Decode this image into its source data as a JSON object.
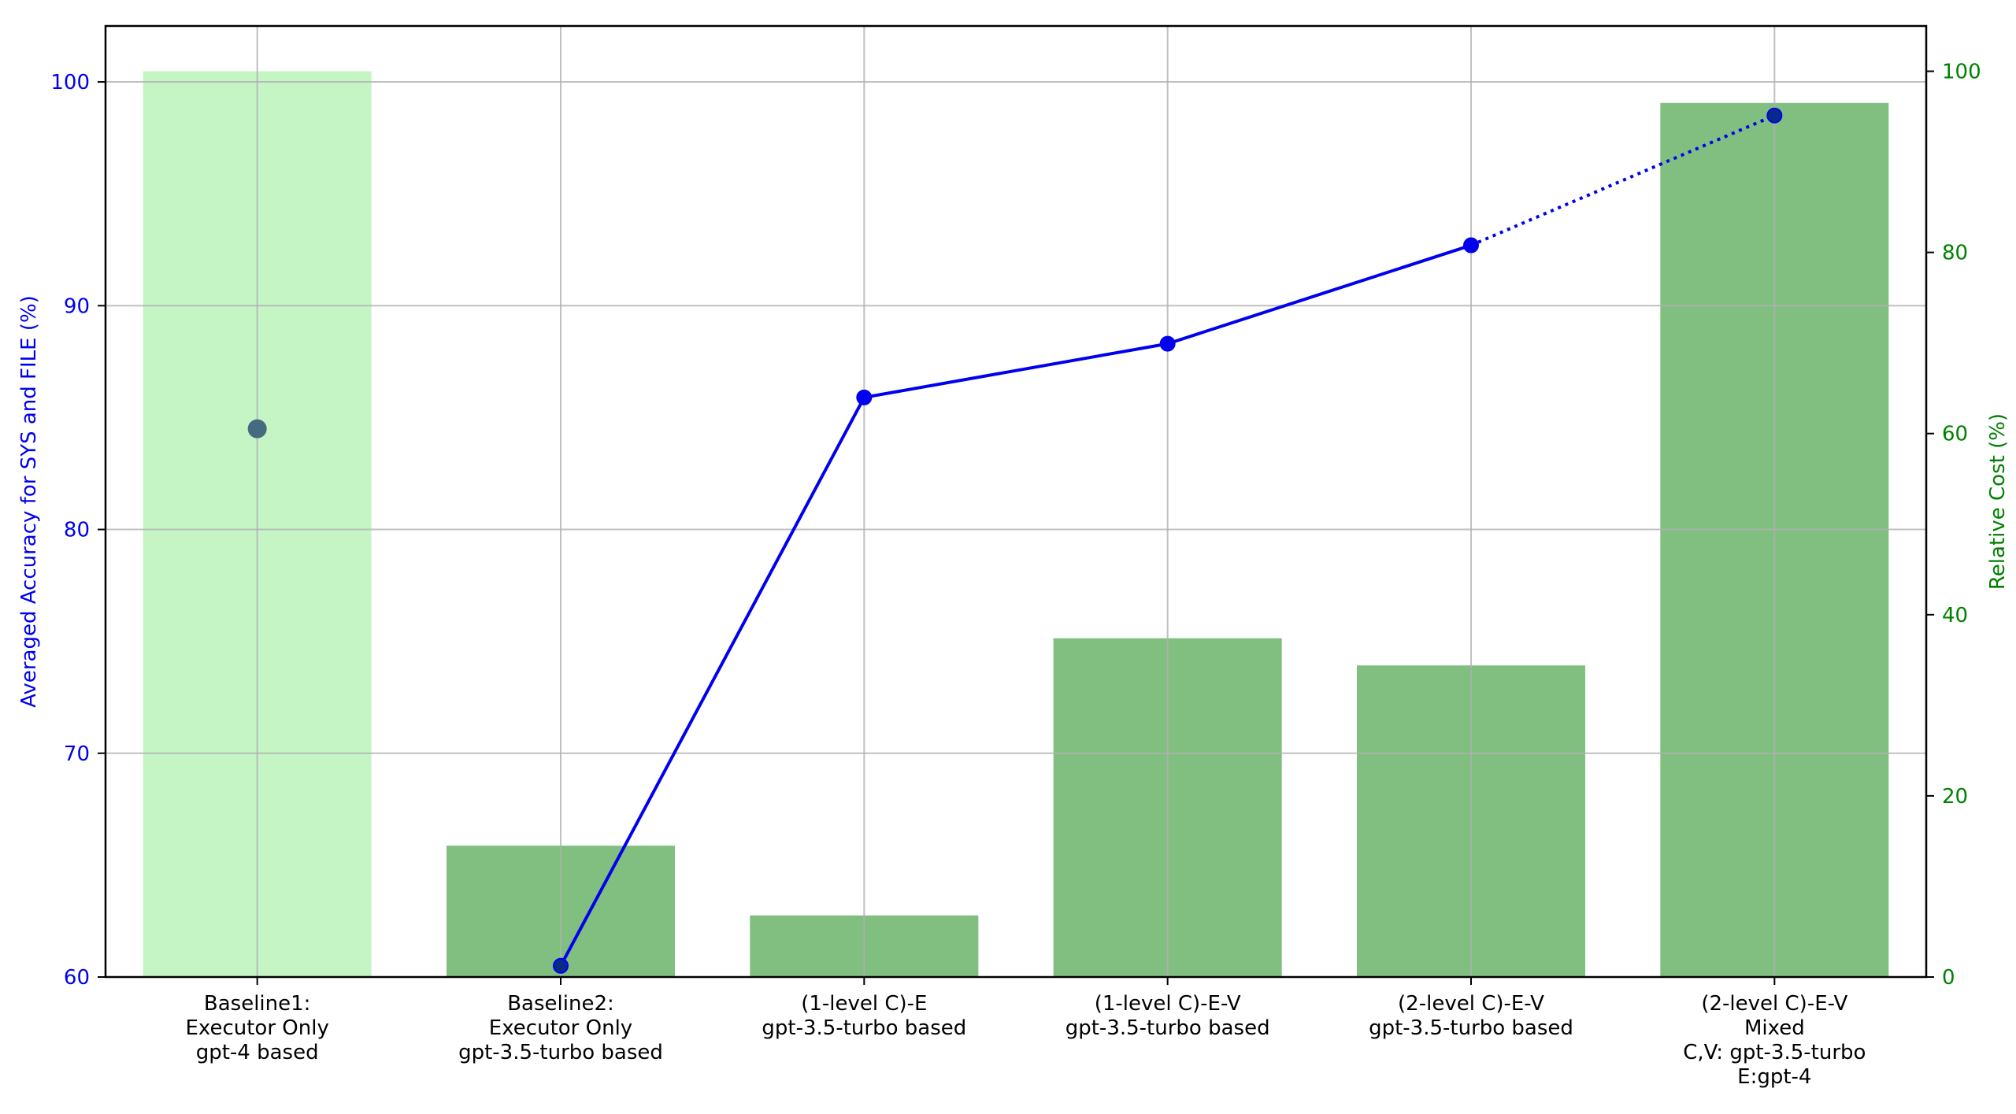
{
  "chart_data": {
    "type": "bar",
    "title": "",
    "categories": [
      [
        "Baseline1:",
        "Executor Only",
        "gpt-4 based"
      ],
      [
        "Baseline2:",
        "Executor Only",
        "gpt-3.5-turbo based"
      ],
      [
        "(1-level C)-E",
        "gpt-3.5-turbo based"
      ],
      [
        "(1-level C)-E-V",
        "gpt-3.5-turbo based"
      ],
      [
        "(2-level C)-E-V",
        "gpt-3.5-turbo based"
      ],
      [
        "(2-level C)-E-V",
        "Mixed",
        "C,V: gpt-3.5-turbo",
        "E:gpt-4"
      ]
    ],
    "bar_series": {
      "values": [
        100,
        14.5,
        6.8,
        37.4,
        34.4,
        96.5
      ],
      "bar_colors": [
        "#c5f5c5",
        "#80bf80",
        "#80bf80",
        "#80bf80",
        "#80bf80",
        "#80bf80"
      ],
      "axis": "right"
    },
    "line_series": {
      "values": [
        84.5,
        60.5,
        85.9,
        88.3,
        92.7,
        98.5
      ],
      "color": "#0000ee",
      "axis": "left",
      "solid_segments": [
        [
          1,
          2
        ],
        [
          2,
          3
        ],
        [
          3,
          4
        ]
      ],
      "dotted_segments": [
        [
          4,
          5
        ]
      ],
      "baseline_marker_color": "#446b7f"
    },
    "ylabel": "Averaged Accuracy for SYS and FILE (%)",
    "ylabel_color": "#0000ee",
    "y2label": "Relative Cost (%)",
    "y2label_color": "#008000",
    "ylim": [
      60,
      102.5
    ],
    "y2lim": [
      0,
      105
    ],
    "yticks": [
      60,
      70,
      80,
      90,
      100
    ],
    "y2ticks": [
      0,
      20,
      40,
      60,
      80,
      100
    ],
    "grid": true
  }
}
